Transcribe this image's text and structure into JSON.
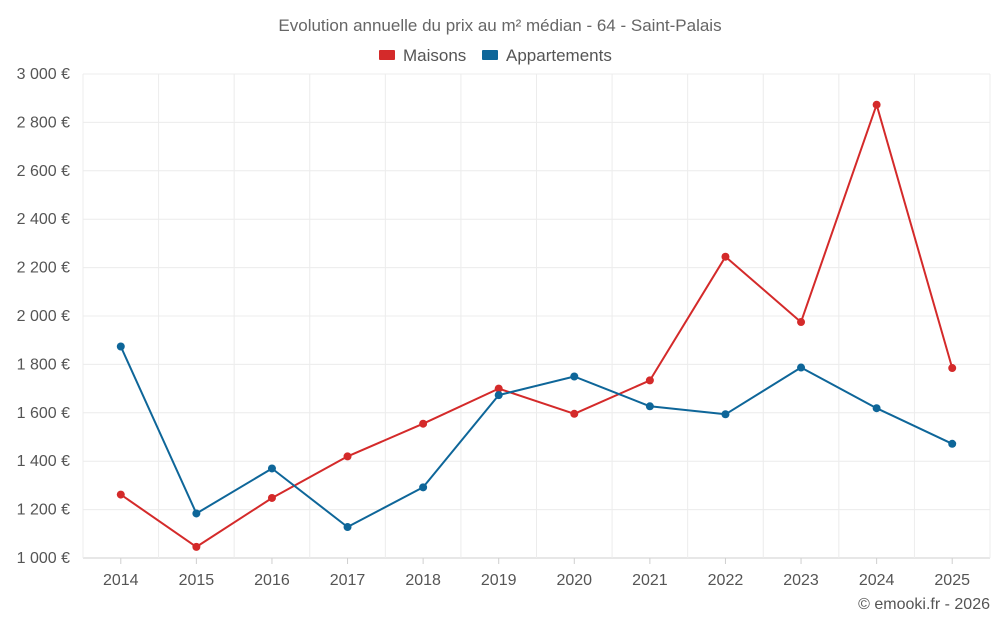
{
  "chart_data": {
    "type": "line",
    "title": "Evolution annuelle du prix au m² médian - 64 - Saint-Palais",
    "categories": [
      "2014",
      "2015",
      "2016",
      "2017",
      "2018",
      "2019",
      "2020",
      "2021",
      "2022",
      "2023",
      "2024",
      "2025"
    ],
    "y_ticks": [
      "1 000 €",
      "1 200 €",
      "1 400 €",
      "1 600 €",
      "1 800 €",
      "2 000 €",
      "2 200 €",
      "2 400 €",
      "2 600 €",
      "2 800 €",
      "3 000 €"
    ],
    "ylim": [
      1000,
      3000
    ],
    "ytick_step": 200,
    "grid": true,
    "legend_position": "top-center",
    "series": [
      {
        "name": "Maisons",
        "color": "#d42a2a",
        "values": [
          1262,
          1046,
          1248,
          1420,
          1555,
          1700,
          1596,
          1734,
          2245,
          1975,
          2873,
          1785
        ]
      },
      {
        "name": "Appartements",
        "color": "#0e6699",
        "values": [
          1874,
          1184,
          1370,
          1128,
          1292,
          1673,
          1750,
          1627,
          1594,
          1787,
          1619,
          1472
        ]
      }
    ],
    "credit": "© emooki.fr - 2026"
  }
}
